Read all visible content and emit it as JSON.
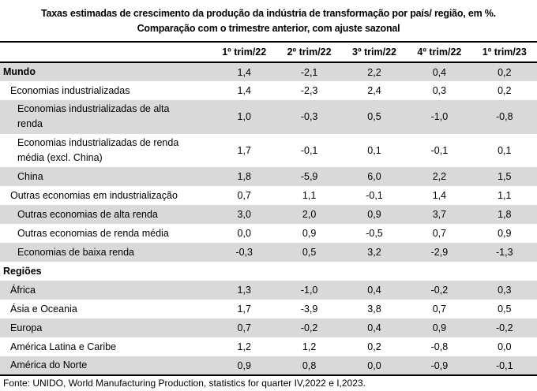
{
  "title": {
    "line1": "Taxas estimadas de crescimento da produção da indústria de transformação por país/ região, em %.",
    "line2": "Comparação com o trimestre anterior, com ajuste sazonal"
  },
  "table": {
    "columns": [
      "",
      "1º trim/22",
      "2º trim/22",
      "3º trim/22",
      "4º trim/22",
      "1º trim/23"
    ],
    "rows": [
      {
        "label": "Mundo",
        "values": [
          "1,4",
          "-2,1",
          "2,2",
          "0,4",
          "0,2"
        ]
      },
      {
        "label": "Economias industrializadas",
        "values": [
          "1,4",
          "-2,3",
          "2,4",
          "0,3",
          "0,2"
        ]
      },
      {
        "label": "Economias industrializadas de alta renda",
        "values": [
          "1,0",
          "-0,3",
          "0,5",
          "-1,0",
          "-0,8"
        ]
      },
      {
        "label": "Economias industrializadas de renda média (excl. China)",
        "values": [
          "1,7",
          "-0,1",
          "0,1",
          "-0,1",
          "0,1"
        ]
      },
      {
        "label": "China",
        "values": [
          "1,8",
          "-5,9",
          "6,0",
          "2,2",
          "1,5"
        ]
      },
      {
        "label": "Outras economias em industrialização",
        "values": [
          "0,7",
          "1,1",
          "-0,1",
          "1,4",
          "1,1"
        ]
      },
      {
        "label": "Outras economias de alta renda",
        "values": [
          "3,0",
          "2,0",
          "0,9",
          "3,7",
          "1,8"
        ]
      },
      {
        "label": "Outras economias de renda média",
        "values": [
          "0,0",
          "0,9",
          "-0,5",
          "0,7",
          "0,9"
        ]
      },
      {
        "label": "Economias de baixa renda",
        "values": [
          "-0,3",
          "0,5",
          "3,2",
          "-2,9",
          "-1,3"
        ]
      },
      {
        "label": "Regiões",
        "values": [
          "",
          "",
          "",
          "",
          ""
        ]
      },
      {
        "label": "África",
        "values": [
          "1,3",
          "-1,0",
          "0,4",
          "-0,2",
          "0,3"
        ]
      },
      {
        "label": "Ásia e Oceania",
        "values": [
          "1,7",
          "-3,9",
          "3,8",
          "0,7",
          "0,5"
        ]
      },
      {
        "label": "Europa",
        "values": [
          "0,7",
          "-0,2",
          "0,4",
          "0,9",
          "-0,2"
        ]
      },
      {
        "label": "América Latina e Caribe",
        "values": [
          "1,2",
          "1,2",
          "0,2",
          "-0,8",
          "0,0"
        ]
      },
      {
        "label": "América do Norte",
        "values": [
          "0,9",
          "0,8",
          "0,0",
          "-0,9",
          "-0,1"
        ]
      }
    ]
  },
  "footnote": "Fonte: UNIDO, World Manufacturing Production, statistics for quarter IV,2022 e I,2023.",
  "colors": {
    "row_shade": "#d9d9d9",
    "rule": "#000000"
  }
}
